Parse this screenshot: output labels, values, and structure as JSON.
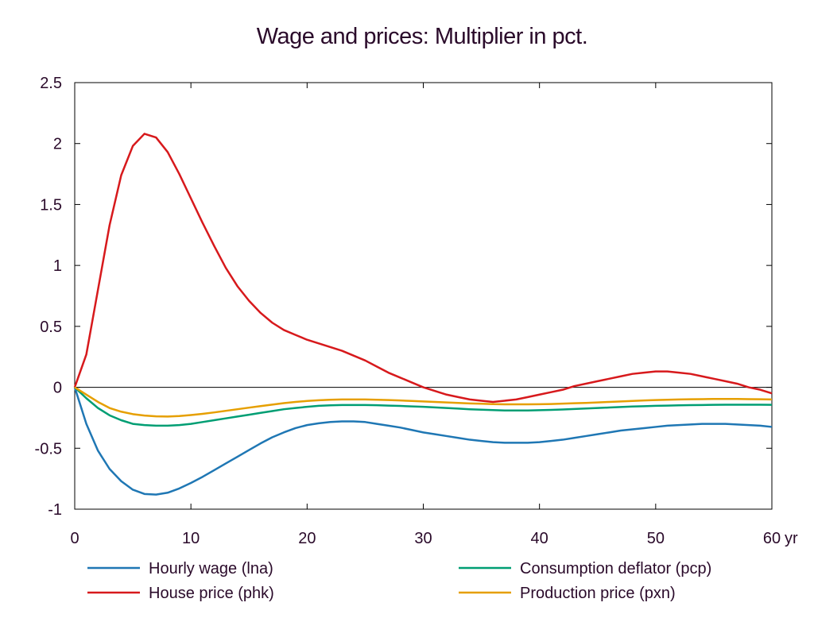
{
  "chart_data": {
    "type": "line",
    "title": "Wage and prices: Multiplier in pct.",
    "xlabel": "",
    "ylabel": "",
    "x_unit_label": "yr",
    "xlim": [
      0,
      60
    ],
    "ylim": [
      -1,
      2.5
    ],
    "x_ticks": [
      "0",
      "10",
      "20",
      "30",
      "40",
      "50",
      "60"
    ],
    "y_ticks": [
      "2.5",
      "2",
      "1.5",
      "1",
      "0.5",
      "0",
      "-0.5",
      "-1"
    ],
    "grid": false,
    "zero_line": true,
    "legend_position": "bottom",
    "x": [
      0,
      1,
      2,
      3,
      4,
      5,
      6,
      7,
      8,
      9,
      10,
      11,
      12,
      13,
      14,
      15,
      16,
      17,
      18,
      19,
      20,
      21,
      22,
      23,
      24,
      25,
      26,
      27,
      28,
      29,
      30,
      31,
      32,
      33,
      34,
      35,
      36,
      37,
      38,
      39,
      40,
      41,
      42,
      43,
      44,
      45,
      46,
      47,
      48,
      49,
      50,
      51,
      52,
      53,
      54,
      55,
      56,
      57,
      58,
      59,
      60
    ],
    "series": [
      {
        "name": "Hourly wage (lna)",
        "color": "#1f77b4",
        "values": [
          0,
          -0.3,
          -0.52,
          -0.67,
          -0.77,
          -0.84,
          -0.875,
          -0.88,
          -0.865,
          -0.83,
          -0.785,
          -0.735,
          -0.68,
          -0.625,
          -0.57,
          -0.515,
          -0.46,
          -0.41,
          -0.37,
          -0.335,
          -0.31,
          -0.295,
          -0.285,
          -0.28,
          -0.28,
          -0.285,
          -0.3,
          -0.315,
          -0.33,
          -0.35,
          -0.37,
          -0.385,
          -0.4,
          -0.415,
          -0.43,
          -0.44,
          -0.45,
          -0.455,
          -0.455,
          -0.455,
          -0.45,
          -0.44,
          -0.43,
          -0.415,
          -0.4,
          -0.385,
          -0.37,
          -0.355,
          -0.345,
          -0.335,
          -0.325,
          -0.315,
          -0.31,
          -0.305,
          -0.3,
          -0.3,
          -0.3,
          -0.305,
          -0.31,
          -0.315,
          -0.325
        ]
      },
      {
        "name": "House price (phk)",
        "color": "#d7191c",
        "values": [
          0,
          0.27,
          0.8,
          1.33,
          1.74,
          1.98,
          2.08,
          2.05,
          1.93,
          1.75,
          1.55,
          1.35,
          1.16,
          0.98,
          0.83,
          0.71,
          0.61,
          0.53,
          0.47,
          0.43,
          0.39,
          0.36,
          0.33,
          0.3,
          0.26,
          0.22,
          0.17,
          0.12,
          0.08,
          0.04,
          0.0,
          -0.03,
          -0.06,
          -0.08,
          -0.1,
          -0.11,
          -0.12,
          -0.11,
          -0.1,
          -0.08,
          -0.06,
          -0.04,
          -0.02,
          0.01,
          0.03,
          0.05,
          0.07,
          0.09,
          0.11,
          0.12,
          0.13,
          0.13,
          0.12,
          0.11,
          0.09,
          0.07,
          0.05,
          0.03,
          0.0,
          -0.02,
          -0.05
        ]
      },
      {
        "name": "Consumption deflator (pcp)",
        "color": "#009e73",
        "values": [
          0,
          -0.09,
          -0.17,
          -0.23,
          -0.27,
          -0.3,
          -0.31,
          -0.315,
          -0.315,
          -0.31,
          -0.3,
          -0.285,
          -0.27,
          -0.255,
          -0.24,
          -0.225,
          -0.21,
          -0.195,
          -0.18,
          -0.17,
          -0.16,
          -0.152,
          -0.148,
          -0.145,
          -0.145,
          -0.145,
          -0.147,
          -0.15,
          -0.153,
          -0.157,
          -0.16,
          -0.165,
          -0.17,
          -0.175,
          -0.18,
          -0.184,
          -0.187,
          -0.19,
          -0.19,
          -0.19,
          -0.188,
          -0.185,
          -0.182,
          -0.178,
          -0.174,
          -0.17,
          -0.166,
          -0.162,
          -0.158,
          -0.155,
          -0.152,
          -0.15,
          -0.148,
          -0.146,
          -0.145,
          -0.144,
          -0.143,
          -0.143,
          -0.143,
          -0.143,
          -0.144
        ]
      },
      {
        "name": "Production price (pxn)",
        "color": "#e69f00",
        "values": [
          0,
          -0.06,
          -0.12,
          -0.17,
          -0.2,
          -0.22,
          -0.232,
          -0.238,
          -0.24,
          -0.236,
          -0.228,
          -0.218,
          -0.206,
          -0.193,
          -0.18,
          -0.167,
          -0.154,
          -0.142,
          -0.13,
          -0.12,
          -0.112,
          -0.106,
          -0.102,
          -0.1,
          -0.1,
          -0.1,
          -0.102,
          -0.105,
          -0.108,
          -0.112,
          -0.116,
          -0.12,
          -0.124,
          -0.128,
          -0.132,
          -0.135,
          -0.138,
          -0.14,
          -0.14,
          -0.14,
          -0.139,
          -0.137,
          -0.134,
          -0.131,
          -0.128,
          -0.124,
          -0.12,
          -0.116,
          -0.112,
          -0.108,
          -0.105,
          -0.102,
          -0.1,
          -0.098,
          -0.097,
          -0.096,
          -0.096,
          -0.096,
          -0.097,
          -0.098,
          -0.1
        ]
      }
    ]
  }
}
